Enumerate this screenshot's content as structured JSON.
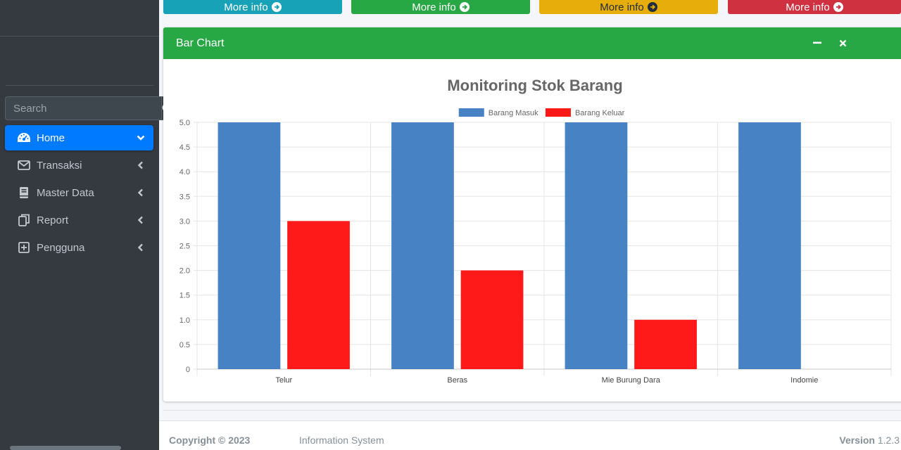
{
  "sidebar": {
    "search_placeholder": "Search",
    "items": [
      {
        "label": "Home",
        "icon": "tachometer-icon",
        "active": true
      },
      {
        "label": "Transaksi",
        "icon": "envelope-icon"
      },
      {
        "label": "Master Data",
        "icon": "book-icon"
      },
      {
        "label": "Report",
        "icon": "copy-icon"
      },
      {
        "label": "Pengguna",
        "icon": "plus-square-icon"
      }
    ]
  },
  "info_buttons": [
    {
      "label": "More info",
      "color": "#17a2b8"
    },
    {
      "label": "More info",
      "color": "#28a745"
    },
    {
      "label": "More info",
      "color": "#ffc107"
    },
    {
      "label": "More info",
      "color": "#dc3545"
    }
  ],
  "card": {
    "title": "Bar Chart"
  },
  "chart_data": {
    "type": "bar",
    "title": "Monitoring Stok Barang",
    "categories": [
      "Telur",
      "Beras",
      "Mie Burung Dara",
      "Indomie"
    ],
    "series": [
      {
        "name": "Barang Masuk",
        "color": "#4682c4",
        "values": [
          5,
          5,
          5,
          5
        ]
      },
      {
        "name": "Barang Keluar",
        "color": "#ff1a1a",
        "values": [
          3,
          2,
          1,
          0
        ]
      }
    ],
    "ylim": [
      0,
      5
    ],
    "yticks": [
      "0",
      "0.5",
      "1.0",
      "1.5",
      "2.0",
      "2.5",
      "3.0",
      "3.5",
      "4.0",
      "4.5",
      "5.0"
    ],
    "legend": "top-center",
    "grid": true
  },
  "footer": {
    "copyright": "Copyright © 2023",
    "system": "Information System",
    "version_label": "Version",
    "version": "1.2.3"
  }
}
